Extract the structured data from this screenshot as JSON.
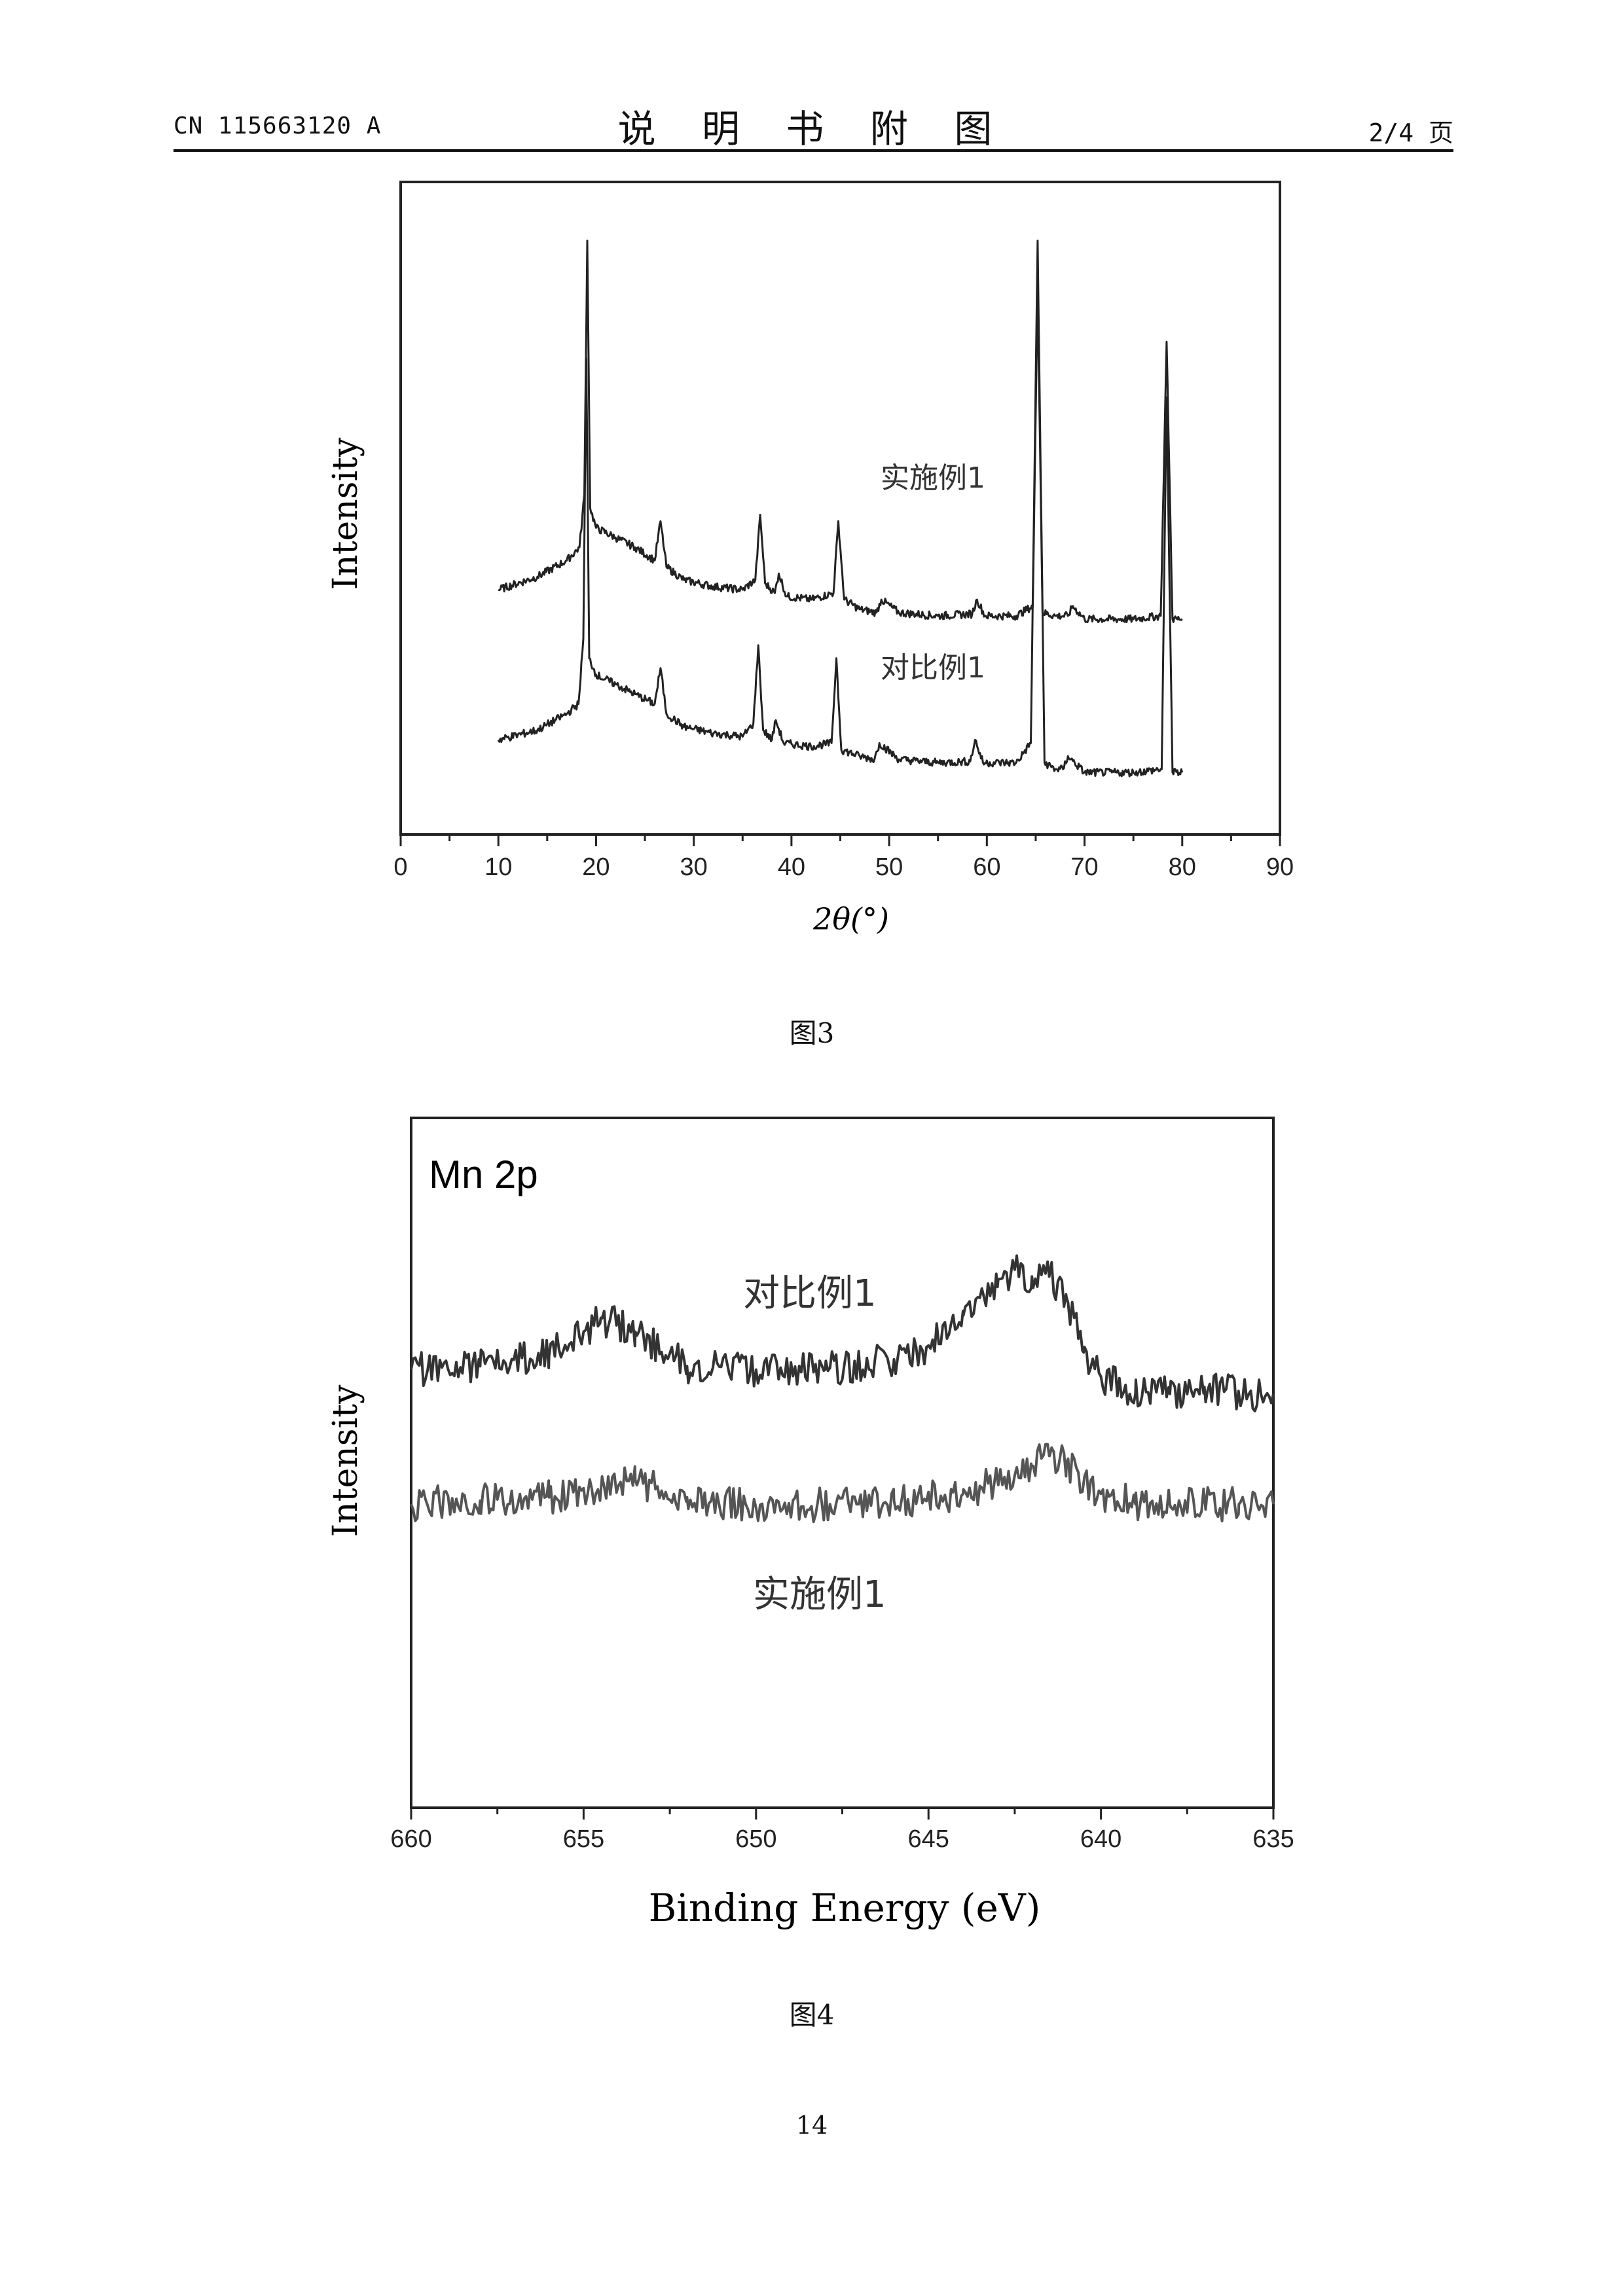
{
  "header": {
    "left": "CN 115663120 A",
    "center": "说 明 书 附 图",
    "right": "2/4 页"
  },
  "page_number": "14",
  "figures": [
    {
      "caption": "图3",
      "annotations": [
        "实施例1",
        "对比例1"
      ]
    },
    {
      "caption": "图4",
      "annotations": [
        "对比例1",
        "实施例1"
      ]
    }
  ],
  "chart_data": [
    {
      "type": "line",
      "title": "",
      "xlabel": "2θ(°)",
      "ylabel": "Intensity",
      "xlim": [
        0,
        90
      ],
      "ylim": [
        0,
        1
      ],
      "xticks": [
        0,
        10,
        20,
        30,
        40,
        50,
        60,
        70,
        80,
        90
      ],
      "yticks_shown": false,
      "grid": false,
      "series": [
        {
          "name": "实施例1",
          "x": [
            10,
            14,
            17,
            18.3,
            18.8,
            19.1,
            19.4,
            20,
            22,
            24,
            26,
            26.6,
            27.2,
            29,
            32,
            35,
            36.3,
            36.8,
            37.3,
            38.3,
            38.7,
            39.5,
            42,
            44.3,
            44.8,
            45.4,
            47,
            48.7,
            49.2,
            51,
            55,
            58.5,
            59.0,
            59.8,
            63,
            64.7,
            65.2,
            65.7,
            67,
            68.3,
            68.8,
            70,
            75,
            77.8,
            78.4,
            79,
            80
          ],
          "y": [
            0.375,
            0.395,
            0.42,
            0.44,
            0.52,
            0.91,
            0.5,
            0.47,
            0.455,
            0.44,
            0.42,
            0.48,
            0.41,
            0.39,
            0.38,
            0.375,
            0.39,
            0.49,
            0.385,
            0.37,
            0.4,
            0.365,
            0.36,
            0.37,
            0.48,
            0.36,
            0.345,
            0.34,
            0.36,
            0.34,
            0.335,
            0.338,
            0.36,
            0.335,
            0.335,
            0.35,
            0.84,
            0.34,
            0.335,
            0.335,
            0.35,
            0.33,
            0.33,
            0.335,
            0.755,
            0.33,
            0.33
          ]
        },
        {
          "name": "对比例1",
          "x": [
            10,
            14,
            17,
            18.2,
            18.7,
            19.0,
            19.3,
            20,
            22,
            24,
            26,
            26.6,
            27.2,
            29,
            32,
            35,
            36.1,
            36.6,
            37.1,
            38.0,
            38.4,
            39.2,
            42,
            44.1,
            44.6,
            45.1,
            47,
            48.5,
            49.0,
            51,
            55,
            58.3,
            58.8,
            59.6,
            63,
            64.5,
            65.2,
            65.9,
            67,
            67.8,
            68.3,
            70,
            75,
            77.9,
            78.4,
            79,
            80
          ],
          "y": [
            0.145,
            0.16,
            0.185,
            0.2,
            0.3,
            0.73,
            0.27,
            0.245,
            0.23,
            0.215,
            0.2,
            0.255,
            0.185,
            0.165,
            0.155,
            0.15,
            0.17,
            0.29,
            0.16,
            0.145,
            0.175,
            0.14,
            0.135,
            0.14,
            0.27,
            0.13,
            0.12,
            0.115,
            0.14,
            0.115,
            0.11,
            0.112,
            0.145,
            0.11,
            0.11,
            0.14,
            0.91,
            0.11,
            0.1,
            0.1,
            0.12,
            0.095,
            0.095,
            0.1,
            0.67,
            0.095,
            0.095
          ]
        }
      ]
    },
    {
      "type": "line",
      "title": "Mn 2p",
      "xlabel": "Binding Energy (eV)",
      "ylabel": "Intensity",
      "xlim": [
        660,
        635
      ],
      "ylim": [
        0,
        1
      ],
      "xticks": [
        660,
        655,
        650,
        645,
        640,
        635
      ],
      "yticks_shown": false,
      "grid": false,
      "series": [
        {
          "name": "对比例1",
          "x": [
            660,
            658,
            656,
            655,
            654.5,
            653.5,
            652,
            650,
            648,
            646,
            645,
            644,
            643,
            642.5,
            642,
            641.5,
            641,
            640.5,
            640,
            639,
            638,
            637,
            636,
            635
          ],
          "y": [
            0.635,
            0.64,
            0.655,
            0.69,
            0.71,
            0.69,
            0.64,
            0.635,
            0.635,
            0.65,
            0.67,
            0.72,
            0.755,
            0.78,
            0.77,
            0.77,
            0.74,
            0.66,
            0.625,
            0.6,
            0.6,
            0.61,
            0.6,
            0.6
          ]
        },
        {
          "name": "实施例1",
          "x": [
            660,
            658,
            656,
            654,
            653.5,
            652,
            650,
            648,
            646,
            644,
            643,
            642,
            641.5,
            641,
            640,
            639,
            638,
            636,
            635
          ],
          "y": [
            0.44,
            0.445,
            0.45,
            0.465,
            0.475,
            0.45,
            0.435,
            0.44,
            0.445,
            0.455,
            0.475,
            0.495,
            0.51,
            0.5,
            0.455,
            0.44,
            0.44,
            0.44,
            0.44
          ]
        }
      ]
    }
  ]
}
